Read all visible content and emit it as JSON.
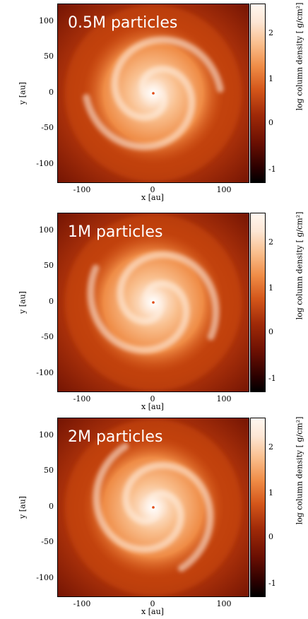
{
  "figure": {
    "colorbar_label": "log column density [ g/cm²]",
    "x_label": "x [au]",
    "y_label": "y [au]",
    "y_ticks": [
      "100",
      "50",
      "0",
      "-50",
      "-100"
    ],
    "x_ticks": [
      "-100",
      "0",
      "100"
    ],
    "colorbar_ticks": [
      "2",
      "1",
      "0",
      "-1"
    ],
    "colormap": [
      "#000000",
      "#6a0f02",
      "#d4561a",
      "#f9bf8e",
      "#fff7f0"
    ]
  },
  "panels": [
    {
      "title": "0.5M particles"
    },
    {
      "title": "1M particles"
    },
    {
      "title": "2M particles"
    }
  ]
}
